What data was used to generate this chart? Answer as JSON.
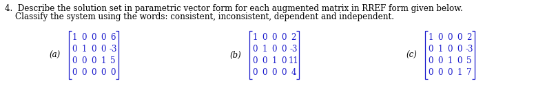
{
  "title_line1": "4.  Describe the solution set in parametric vector form for each augmented matrix in RREF form given below.",
  "title_line2": "    Classify the system using the words: consistent, inconsistent, dependent and independent.",
  "text_color": "#000000",
  "blue_color": "#1a1acc",
  "bg_color": "#ffffff",
  "matrix_a": [
    [
      1,
      0,
      0,
      0,
      6
    ],
    [
      0,
      1,
      0,
      0,
      -3
    ],
    [
      0,
      0,
      0,
      1,
      5
    ],
    [
      0,
      0,
      0,
      0,
      0
    ]
  ],
  "matrix_b": [
    [
      1,
      0,
      0,
      0,
      2
    ],
    [
      0,
      1,
      0,
      0,
      -3
    ],
    [
      0,
      0,
      1,
      0,
      11
    ],
    [
      0,
      0,
      0,
      0,
      4
    ]
  ],
  "matrix_c": [
    [
      1,
      0,
      0,
      0,
      2
    ],
    [
      0,
      1,
      0,
      0,
      -3
    ],
    [
      0,
      0,
      1,
      0,
      5
    ],
    [
      0,
      0,
      0,
      1,
      7
    ]
  ],
  "label_a": "(a)",
  "label_b": "(b)",
  "label_c": "(c)",
  "title_fontsize": 8.6,
  "matrix_fontsize": 8.5,
  "label_fontsize": 8.5
}
